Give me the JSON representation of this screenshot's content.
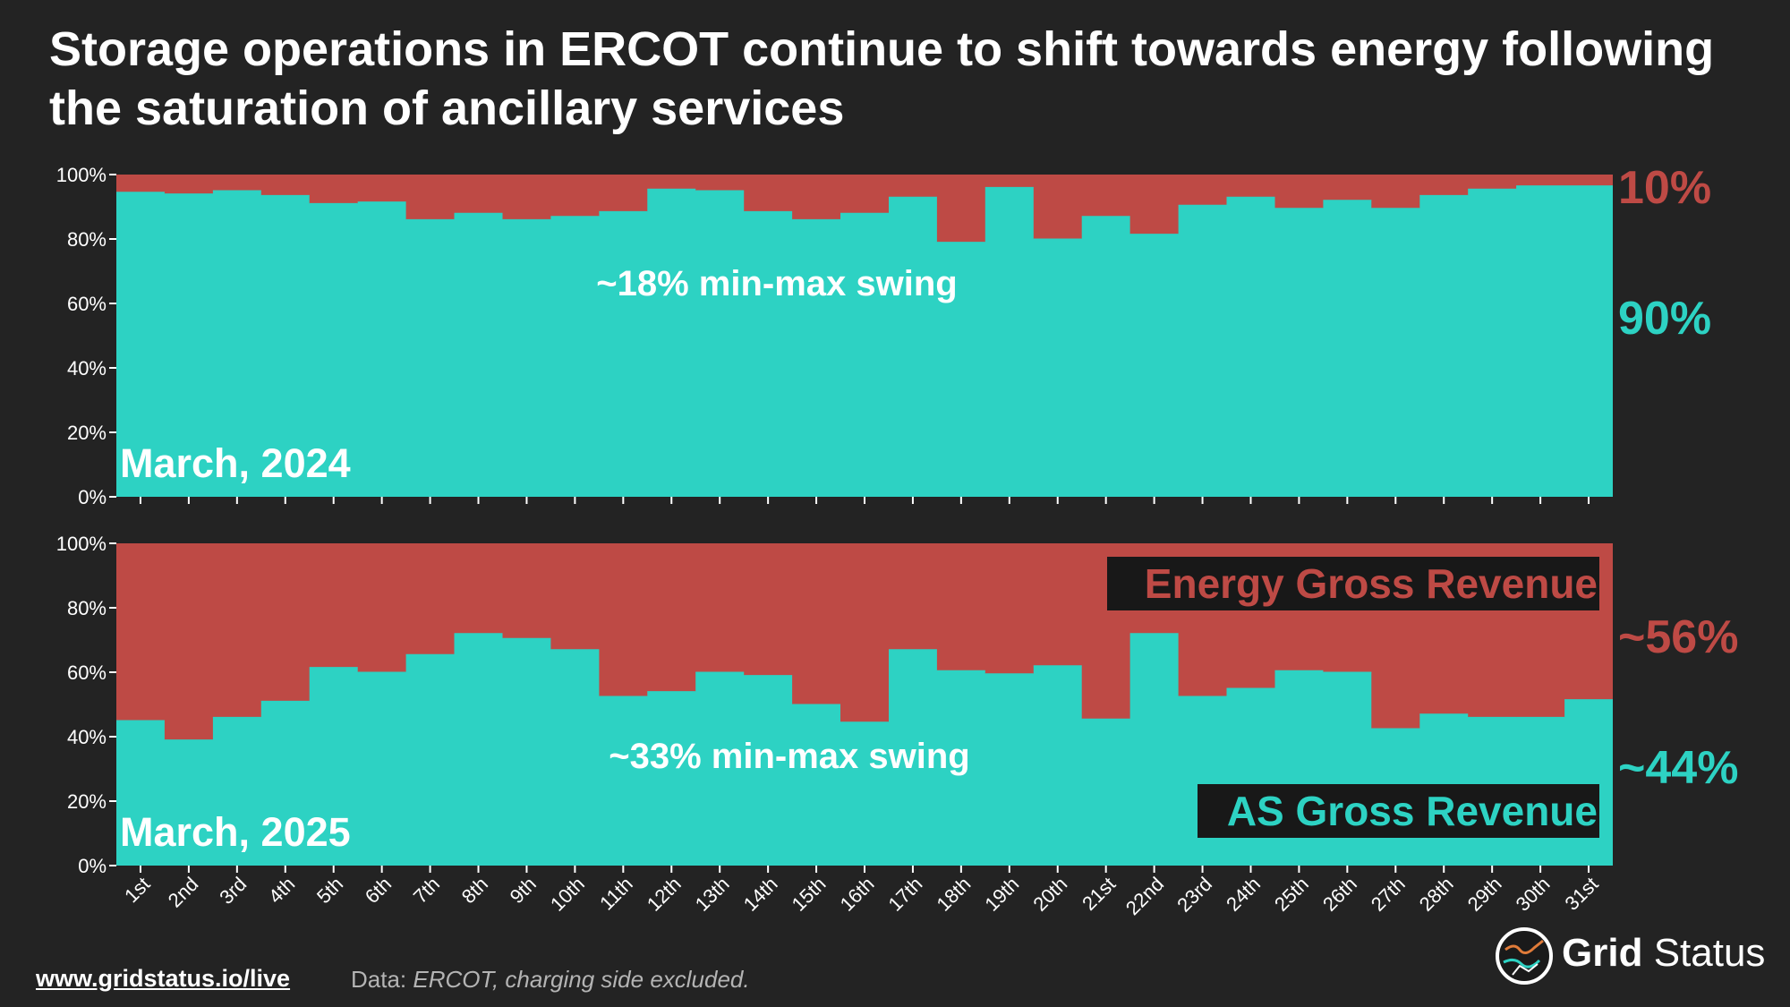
{
  "title": "Storage operations in ERCOT continue to shift towards energy following the saturation of ancillary services",
  "colors": {
    "background": "#232323",
    "energy": "#BE4A45",
    "as": "#2DD2C3",
    "text": "#FFFFFF"
  },
  "chart_data": [
    {
      "type": "area",
      "period_label": "March, 2024",
      "annotation": "~18% min-max swing",
      "ylim": [
        0,
        100
      ],
      "y_ticks": [
        "0%",
        "20%",
        "40%",
        "60%",
        "80%",
        "100%"
      ],
      "categories": [
        "1st",
        "2nd",
        "3rd",
        "4th",
        "5th",
        "6th",
        "7th",
        "8th",
        "9th",
        "10th",
        "11th",
        "12th",
        "13th",
        "14th",
        "15th",
        "16th",
        "17th",
        "18th",
        "19th",
        "20th",
        "21st",
        "22nd",
        "23rd",
        "24th",
        "25th",
        "26th",
        "27th",
        "28th",
        "29th",
        "30th",
        "31st"
      ],
      "series": [
        {
          "values": [
            94.5,
            94,
            95,
            93.5,
            91,
            91.5,
            86,
            88,
            86,
            87,
            88.5,
            95.5,
            95,
            88.5,
            86,
            88,
            93,
            79,
            96,
            80,
            87,
            81.5,
            90.5,
            93,
            89.5,
            92,
            89.5,
            93.5,
            95.5,
            96.5,
            96.5
          ]
        }
      ],
      "right_labels": {
        "energy": "10%",
        "as": "90%"
      }
    },
    {
      "type": "area",
      "period_label": "March, 2025",
      "annotation": "~33% min-max swing",
      "ylim": [
        0,
        100
      ],
      "y_ticks": [
        "0%",
        "20%",
        "40%",
        "60%",
        "80%",
        "100%"
      ],
      "categories": [
        "1st",
        "2nd",
        "3rd",
        "4th",
        "5th",
        "6th",
        "7th",
        "8th",
        "9th",
        "10th",
        "11th",
        "12th",
        "13th",
        "14th",
        "15th",
        "16th",
        "17th",
        "18th",
        "19th",
        "20th",
        "21st",
        "22nd",
        "23rd",
        "24th",
        "25th",
        "26th",
        "27th",
        "28th",
        "29th",
        "30th",
        "31st"
      ],
      "series": [
        {
          "values": [
            45,
            39,
            46,
            51,
            61.5,
            60,
            65.5,
            72,
            70.5,
            67,
            52.5,
            54,
            60,
            59,
            50,
            44.5,
            67,
            60.5,
            59.5,
            62,
            45.5,
            72,
            52.5,
            55,
            60.5,
            60,
            42.5,
            47,
            46,
            46,
            51.5
          ]
        }
      ],
      "right_labels": {
        "energy": "~56%",
        "as": "~44%"
      },
      "legend": {
        "energy": "Energy Gross Revenue",
        "as": "AS Gross Revenue"
      }
    }
  ],
  "footer": {
    "link": "www.gridstatus.io/live",
    "data_prefix": "Data: ",
    "data_source": "ERCOT, charging side excluded."
  },
  "logo": {
    "word1": "Grid",
    "word2": "Status"
  }
}
